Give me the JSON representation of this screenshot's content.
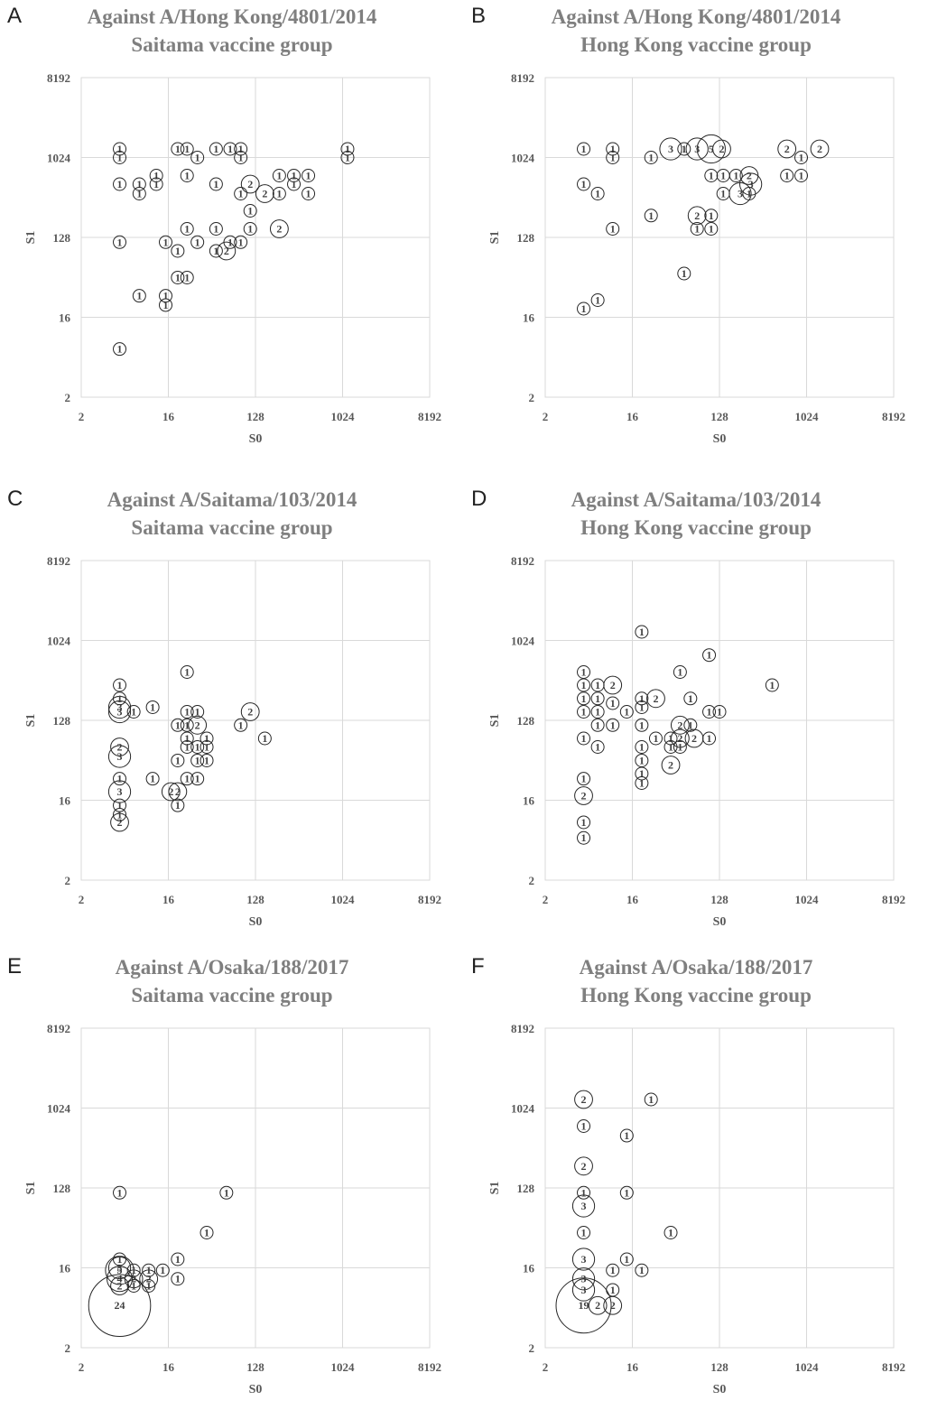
{
  "axis_ticks": [
    "2",
    "16",
    "128",
    "1024",
    "8192"
  ],
  "chart_data": [
    {
      "panel": "A",
      "type": "scatter",
      "title": [
        "Against A/Hong Kong/4801/2014",
        "Saitama vaccine group"
      ],
      "xlabel": "S0",
      "ylabel": "S1",
      "log_scale": 2,
      "xlim": [
        2,
        8192
      ],
      "ylim": [
        2,
        8192
      ],
      "grid": true,
      "points": [
        {
          "x": 5,
          "y": 1280,
          "n": 1
        },
        {
          "x": 5,
          "y": 1024,
          "n": 1
        },
        {
          "x": 5,
          "y": 512,
          "n": 1
        },
        {
          "x": 5,
          "y": 113,
          "n": 1
        },
        {
          "x": 5,
          "y": 7,
          "n": 1
        },
        {
          "x": 8,
          "y": 512,
          "n": 1
        },
        {
          "x": 8,
          "y": 400,
          "n": 1
        },
        {
          "x": 8,
          "y": 28,
          "n": 1
        },
        {
          "x": 12,
          "y": 640,
          "n": 1
        },
        {
          "x": 12,
          "y": 512,
          "n": 1
        },
        {
          "x": 15,
          "y": 113,
          "n": 1
        },
        {
          "x": 15,
          "y": 28,
          "n": 1
        },
        {
          "x": 15,
          "y": 22,
          "n": 1
        },
        {
          "x": 20,
          "y": 1280,
          "n": 1
        },
        {
          "x": 20,
          "y": 90,
          "n": 1
        },
        {
          "x": 20,
          "y": 45,
          "n": 1
        },
        {
          "x": 25,
          "y": 1280,
          "n": 1
        },
        {
          "x": 25,
          "y": 640,
          "n": 1
        },
        {
          "x": 25,
          "y": 160,
          "n": 1
        },
        {
          "x": 25,
          "y": 45,
          "n": 1
        },
        {
          "x": 32,
          "y": 1024,
          "n": 1
        },
        {
          "x": 32,
          "y": 113,
          "n": 1
        },
        {
          "x": 50,
          "y": 1280,
          "n": 1
        },
        {
          "x": 50,
          "y": 512,
          "n": 1
        },
        {
          "x": 50,
          "y": 160,
          "n": 1
        },
        {
          "x": 50,
          "y": 90,
          "n": 1
        },
        {
          "x": 64,
          "y": 90,
          "n": 2
        },
        {
          "x": 70,
          "y": 1280,
          "n": 1
        },
        {
          "x": 70,
          "y": 113,
          "n": 1
        },
        {
          "x": 90,
          "y": 1280,
          "n": 1
        },
        {
          "x": 90,
          "y": 1024,
          "n": 1
        },
        {
          "x": 90,
          "y": 400,
          "n": 1
        },
        {
          "x": 90,
          "y": 113,
          "n": 1
        },
        {
          "x": 113,
          "y": 512,
          "n": 2
        },
        {
          "x": 113,
          "y": 256,
          "n": 1
        },
        {
          "x": 113,
          "y": 160,
          "n": 1
        },
        {
          "x": 160,
          "y": 400,
          "n": 2
        },
        {
          "x": 226,
          "y": 640,
          "n": 1
        },
        {
          "x": 226,
          "y": 400,
          "n": 1
        },
        {
          "x": 226,
          "y": 160,
          "n": 2
        },
        {
          "x": 320,
          "y": 640,
          "n": 1
        },
        {
          "x": 320,
          "y": 512,
          "n": 1
        },
        {
          "x": 452,
          "y": 640,
          "n": 1
        },
        {
          "x": 452,
          "y": 400,
          "n": 1
        },
        {
          "x": 1152,
          "y": 1280,
          "n": 1
        },
        {
          "x": 1152,
          "y": 1024,
          "n": 1
        }
      ]
    },
    {
      "panel": "B",
      "type": "scatter",
      "title": [
        "Against A/Hong Kong/4801/2014",
        "Hong Kong vaccine group"
      ],
      "xlabel": "S0",
      "ylabel": "S1",
      "log_scale": 2,
      "xlim": [
        2,
        8192
      ],
      "ylim": [
        2,
        8192
      ],
      "grid": true,
      "points": [
        {
          "x": 5,
          "y": 1280,
          "n": 1
        },
        {
          "x": 5,
          "y": 512,
          "n": 1
        },
        {
          "x": 5,
          "y": 20,
          "n": 1
        },
        {
          "x": 7,
          "y": 400,
          "n": 1
        },
        {
          "x": 7,
          "y": 25,
          "n": 1
        },
        {
          "x": 10,
          "y": 1280,
          "n": 1
        },
        {
          "x": 10,
          "y": 1024,
          "n": 1
        },
        {
          "x": 10,
          "y": 160,
          "n": 1
        },
        {
          "x": 25,
          "y": 1024,
          "n": 1
        },
        {
          "x": 25,
          "y": 226,
          "n": 1
        },
        {
          "x": 40,
          "y": 1280,
          "n": 3
        },
        {
          "x": 55,
          "y": 1280,
          "n": 1
        },
        {
          "x": 55,
          "y": 50,
          "n": 1
        },
        {
          "x": 75,
          "y": 1280,
          "n": 3
        },
        {
          "x": 75,
          "y": 226,
          "n": 2
        },
        {
          "x": 75,
          "y": 160,
          "n": 1
        },
        {
          "x": 105,
          "y": 1280,
          "n": 5
        },
        {
          "x": 105,
          "y": 226,
          "n": 1
        },
        {
          "x": 105,
          "y": 160,
          "n": 1
        },
        {
          "x": 135,
          "y": 1280,
          "n": 2
        },
        {
          "x": 105,
          "y": 640,
          "n": 1
        },
        {
          "x": 140,
          "y": 640,
          "n": 1
        },
        {
          "x": 140,
          "y": 400,
          "n": 1
        },
        {
          "x": 190,
          "y": 640,
          "n": 1
        },
        {
          "x": 210,
          "y": 400,
          "n": 3
        },
        {
          "x": 260,
          "y": 640,
          "n": 2
        },
        {
          "x": 270,
          "y": 512,
          "n": 3
        },
        {
          "x": 260,
          "y": 400,
          "n": 1
        },
        {
          "x": 640,
          "y": 1280,
          "n": 2
        },
        {
          "x": 640,
          "y": 640,
          "n": 1
        },
        {
          "x": 900,
          "y": 1024,
          "n": 1
        },
        {
          "x": 900,
          "y": 640,
          "n": 1
        },
        {
          "x": 1400,
          "y": 1280,
          "n": 2
        }
      ]
    },
    {
      "panel": "C",
      "type": "scatter",
      "title": [
        "Against A/Saitama/103/2014",
        "Saitama vaccine group"
      ],
      "xlabel": "S0",
      "ylabel": "S1",
      "log_scale": 2,
      "xlim": [
        2,
        8192
      ],
      "ylim": [
        2,
        8192
      ],
      "grid": true,
      "points": [
        {
          "x": 5,
          "y": 320,
          "n": 1
        },
        {
          "x": 5,
          "y": 226,
          "n": 1
        },
        {
          "x": 5,
          "y": 180,
          "n": 3
        },
        {
          "x": 5,
          "y": 160,
          "n": 3
        },
        {
          "x": 5,
          "y": 64,
          "n": 2
        },
        {
          "x": 5,
          "y": 50,
          "n": 3
        },
        {
          "x": 5,
          "y": 28,
          "n": 1
        },
        {
          "x": 5,
          "y": 20,
          "n": 3
        },
        {
          "x": 5,
          "y": 14,
          "n": 1
        },
        {
          "x": 5,
          "y": 11,
          "n": 1
        },
        {
          "x": 5,
          "y": 9,
          "n": 2
        },
        {
          "x": 7,
          "y": 160,
          "n": 1
        },
        {
          "x": 11,
          "y": 180,
          "n": 1
        },
        {
          "x": 11,
          "y": 28,
          "n": 1
        },
        {
          "x": 17,
          "y": 20,
          "n": 2
        },
        {
          "x": 20,
          "y": 20,
          "n": 2
        },
        {
          "x": 20,
          "y": 113,
          "n": 1
        },
        {
          "x": 20,
          "y": 45,
          "n": 1
        },
        {
          "x": 20,
          "y": 14,
          "n": 1
        },
        {
          "x": 25,
          "y": 450,
          "n": 1
        },
        {
          "x": 25,
          "y": 160,
          "n": 1
        },
        {
          "x": 25,
          "y": 113,
          "n": 1
        },
        {
          "x": 25,
          "y": 80,
          "n": 1
        },
        {
          "x": 25,
          "y": 64,
          "n": 1
        },
        {
          "x": 25,
          "y": 28,
          "n": 1
        },
        {
          "x": 32,
          "y": 160,
          "n": 1
        },
        {
          "x": 32,
          "y": 113,
          "n": 2
        },
        {
          "x": 32,
          "y": 64,
          "n": 1
        },
        {
          "x": 32,
          "y": 45,
          "n": 1
        },
        {
          "x": 32,
          "y": 28,
          "n": 1
        },
        {
          "x": 40,
          "y": 80,
          "n": 1
        },
        {
          "x": 40,
          "y": 64,
          "n": 1
        },
        {
          "x": 40,
          "y": 45,
          "n": 1
        },
        {
          "x": 90,
          "y": 113,
          "n": 1
        },
        {
          "x": 113,
          "y": 160,
          "n": 2
        },
        {
          "x": 160,
          "y": 80,
          "n": 1
        }
      ]
    },
    {
      "panel": "D",
      "type": "scatter",
      "title": [
        "Against A/Saitama/103/2014",
        "Hong Kong vaccine group"
      ],
      "xlabel": "S0",
      "ylabel": "S1",
      "log_scale": 2,
      "xlim": [
        2,
        8192
      ],
      "ylim": [
        2,
        8192
      ],
      "grid": true,
      "points": [
        {
          "x": 5,
          "y": 450,
          "n": 1
        },
        {
          "x": 5,
          "y": 320,
          "n": 1
        },
        {
          "x": 5,
          "y": 226,
          "n": 1
        },
        {
          "x": 5,
          "y": 160,
          "n": 1
        },
        {
          "x": 5,
          "y": 80,
          "n": 1
        },
        {
          "x": 5,
          "y": 28,
          "n": 1
        },
        {
          "x": 5,
          "y": 18,
          "n": 2
        },
        {
          "x": 5,
          "y": 9,
          "n": 1
        },
        {
          "x": 5,
          "y": 6,
          "n": 1
        },
        {
          "x": 7,
          "y": 320,
          "n": 1
        },
        {
          "x": 7,
          "y": 226,
          "n": 1
        },
        {
          "x": 7,
          "y": 160,
          "n": 1
        },
        {
          "x": 7,
          "y": 113,
          "n": 1
        },
        {
          "x": 7,
          "y": 64,
          "n": 1
        },
        {
          "x": 10,
          "y": 320,
          "n": 2
        },
        {
          "x": 10,
          "y": 200,
          "n": 1
        },
        {
          "x": 10,
          "y": 113,
          "n": 1
        },
        {
          "x": 14,
          "y": 160,
          "n": 1
        },
        {
          "x": 20,
          "y": 1280,
          "n": 1
        },
        {
          "x": 20,
          "y": 226,
          "n": 1
        },
        {
          "x": 20,
          "y": 180,
          "n": 1
        },
        {
          "x": 20,
          "y": 113,
          "n": 1
        },
        {
          "x": 20,
          "y": 64,
          "n": 1
        },
        {
          "x": 20,
          "y": 45,
          "n": 1
        },
        {
          "x": 20,
          "y": 32,
          "n": 1
        },
        {
          "x": 20,
          "y": 25,
          "n": 1
        },
        {
          "x": 28,
          "y": 226,
          "n": 2
        },
        {
          "x": 28,
          "y": 80,
          "n": 1
        },
        {
          "x": 40,
          "y": 80,
          "n": 1
        },
        {
          "x": 40,
          "y": 64,
          "n": 1
        },
        {
          "x": 40,
          "y": 40,
          "n": 2
        },
        {
          "x": 50,
          "y": 450,
          "n": 1
        },
        {
          "x": 50,
          "y": 113,
          "n": 2
        },
        {
          "x": 50,
          "y": 64,
          "n": 1
        },
        {
          "x": 50,
          "y": 80,
          "n": 2
        },
        {
          "x": 64,
          "y": 226,
          "n": 1
        },
        {
          "x": 64,
          "y": 113,
          "n": 1
        },
        {
          "x": 70,
          "y": 80,
          "n": 2
        },
        {
          "x": 100,
          "y": 700,
          "n": 1
        },
        {
          "x": 100,
          "y": 160,
          "n": 1
        },
        {
          "x": 100,
          "y": 80,
          "n": 1
        },
        {
          "x": 128,
          "y": 160,
          "n": 1
        },
        {
          "x": 450,
          "y": 320,
          "n": 1
        }
      ]
    },
    {
      "panel": "E",
      "type": "scatter",
      "title": [
        "Against A/Osaka/188/2017",
        "Saitama vaccine group"
      ],
      "xlabel": "S0",
      "ylabel": "S1",
      "log_scale": 2,
      "xlim": [
        2,
        8192
      ],
      "ylim": [
        2,
        8192
      ],
      "grid": true,
      "points": [
        {
          "x": 5,
          "y": 113,
          "n": 1
        },
        {
          "x": 5,
          "y": 20,
          "n": 1
        },
        {
          "x": 5,
          "y": 16,
          "n": 3
        },
        {
          "x": 5,
          "y": 15,
          "n": 5
        },
        {
          "x": 5,
          "y": 12,
          "n": 4
        },
        {
          "x": 5,
          "y": 10,
          "n": 2
        },
        {
          "x": 5,
          "y": 6,
          "n": 24
        },
        {
          "x": 7,
          "y": 15,
          "n": 1
        },
        {
          "x": 7,
          "y": 10,
          "n": 1
        },
        {
          "x": 7,
          "y": 12,
          "n": 2
        },
        {
          "x": 10,
          "y": 15,
          "n": 1
        },
        {
          "x": 10,
          "y": 12,
          "n": 2
        },
        {
          "x": 10,
          "y": 10,
          "n": 1
        },
        {
          "x": 14,
          "y": 15,
          "n": 1
        },
        {
          "x": 20,
          "y": 20,
          "n": 1
        },
        {
          "x": 20,
          "y": 12,
          "n": 1
        },
        {
          "x": 40,
          "y": 40,
          "n": 1
        },
        {
          "x": 64,
          "y": 113,
          "n": 1
        }
      ]
    },
    {
      "panel": "F",
      "type": "scatter",
      "title": [
        "Against A/Osaka/188/2017",
        "Hong Kong vaccine group"
      ],
      "xlabel": "S0",
      "ylabel": "S1",
      "log_scale": 2,
      "xlim": [
        2,
        8192
      ],
      "ylim": [
        2,
        8192
      ],
      "grid": true,
      "points": [
        {
          "x": 5,
          "y": 1280,
          "n": 2
        },
        {
          "x": 5,
          "y": 640,
          "n": 1
        },
        {
          "x": 5,
          "y": 226,
          "n": 2
        },
        {
          "x": 5,
          "y": 113,
          "n": 1
        },
        {
          "x": 5,
          "y": 80,
          "n": 3
        },
        {
          "x": 5,
          "y": 40,
          "n": 1
        },
        {
          "x": 5,
          "y": 20,
          "n": 3
        },
        {
          "x": 5,
          "y": 12,
          "n": 3
        },
        {
          "x": 5,
          "y": 9,
          "n": 3
        },
        {
          "x": 5,
          "y": 6,
          "n": 19
        },
        {
          "x": 7,
          "y": 6,
          "n": 2
        },
        {
          "x": 10,
          "y": 6,
          "n": 2
        },
        {
          "x": 10,
          "y": 9,
          "n": 1
        },
        {
          "x": 10,
          "y": 15,
          "n": 1
        },
        {
          "x": 14,
          "y": 500,
          "n": 1
        },
        {
          "x": 14,
          "y": 113,
          "n": 1
        },
        {
          "x": 14,
          "y": 20,
          "n": 1
        },
        {
          "x": 20,
          "y": 15,
          "n": 1
        },
        {
          "x": 25,
          "y": 1280,
          "n": 1
        },
        {
          "x": 40,
          "y": 40,
          "n": 1
        }
      ]
    }
  ]
}
